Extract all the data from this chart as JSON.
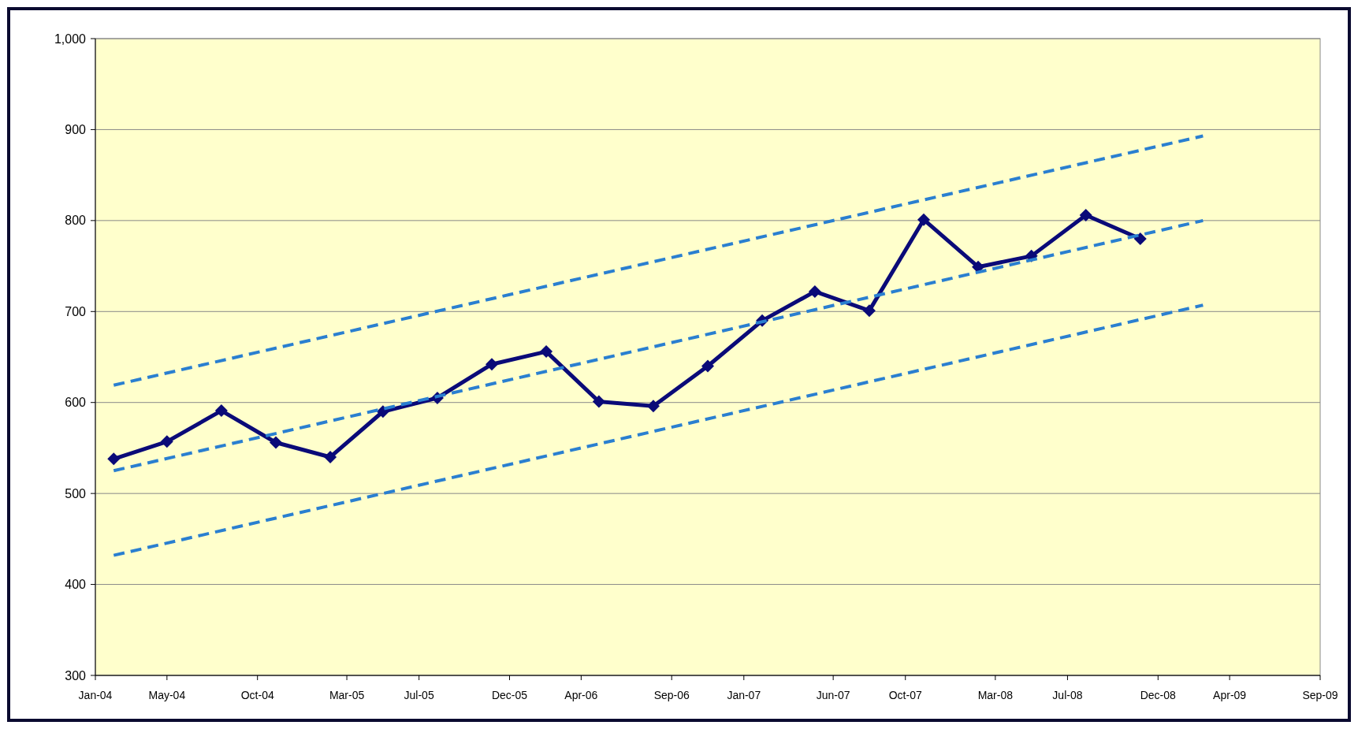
{
  "chart_data": {
    "type": "line",
    "x": [
      "2004-02",
      "2004-05",
      "2004-08",
      "2004-11",
      "2005-02",
      "2005-05",
      "2005-08",
      "2005-11",
      "2006-02",
      "2006-05",
      "2006-08",
      "2006-11",
      "2007-02",
      "2007-05",
      "2007-08",
      "2007-11",
      "2008-02",
      "2008-05",
      "2008-08",
      "2008-11"
    ],
    "series": [
      {
        "color": "#0a0a78",
        "marker": "diamond",
        "line_style": "solid",
        "values": [
          538,
          557,
          591,
          556,
          540,
          590,
          605,
          642,
          656,
          601,
          596,
          640,
          690,
          722,
          701,
          801,
          749,
          761,
          806,
          780
        ]
      },
      {
        "color": "#2a7fd0",
        "marker": "none",
        "line_style": "dashed",
        "x": [
          "2004-02",
          "2009-02-15"
        ],
        "values": [
          619,
          893
        ]
      },
      {
        "color": "#2a7fd0",
        "marker": "none",
        "line_style": "dashed",
        "x": [
          "2004-02",
          "2009-02-15"
        ],
        "values": [
          525,
          800
        ]
      },
      {
        "color": "#2a7fd0",
        "marker": "none",
        "line_style": "dashed",
        "x": [
          "2004-02",
          "2009-02-15"
        ],
        "values": [
          432,
          707
        ]
      }
    ],
    "ylim": [
      300,
      1000
    ],
    "yticks": [
      300,
      400,
      500,
      600,
      700,
      800,
      900,
      {
        "value": 1000,
        "label": "1,000"
      }
    ],
    "xlim": [
      "2004-01",
      "2009-09"
    ],
    "xticks": [
      {
        "value": "2004-01",
        "label": "Jan-04"
      },
      {
        "value": "2004-05",
        "label": "May-04"
      },
      {
        "value": "2004-10",
        "label": "Oct-04"
      },
      {
        "value": "2005-03",
        "label": "Mar-05"
      },
      {
        "value": "2005-07",
        "label": "Jul-05"
      },
      {
        "value": "2005-12",
        "label": "Dec-05"
      },
      {
        "value": "2006-04",
        "label": "Apr-06"
      },
      {
        "value": "2006-09",
        "label": "Sep-06"
      },
      {
        "value": "2007-01",
        "label": "Jan-07"
      },
      {
        "value": "2007-06",
        "label": "Jun-07"
      },
      {
        "value": "2007-10",
        "label": "Oct-07"
      },
      {
        "value": "2008-03",
        "label": "Mar-08"
      },
      {
        "value": "2008-07",
        "label": "Jul-08"
      },
      {
        "value": "2008-12",
        "label": "Dec-08"
      },
      {
        "value": "2009-04",
        "label": "Apr-09"
      },
      {
        "value": "2009-09",
        "label": "Sep-09"
      }
    ],
    "grid": "y"
  }
}
